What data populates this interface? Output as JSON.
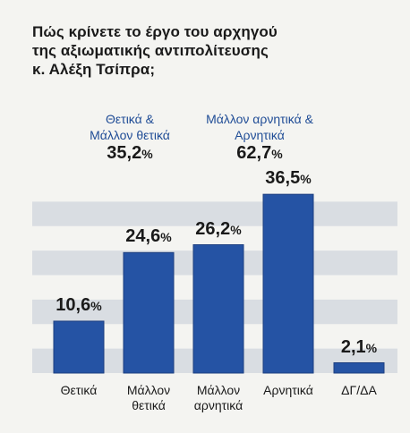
{
  "chart_data": {
    "type": "bar",
    "title_lines": [
      "Πώς κρίνετε το έργο του αρχηγού",
      "της αξιωματικής αντιπολίτευσης",
      "κ. Αλέξη Τσίπρα;"
    ],
    "categories": [
      [
        "Θετικά"
      ],
      [
        "Μάλλον",
        "θετικά"
      ],
      [
        "Μάλλον",
        "αρνητικά"
      ],
      [
        "Αρνητικά"
      ],
      [
        "ΔΓ/ΔΑ"
      ]
    ],
    "values": [
      10.6,
      24.6,
      26.2,
      36.5,
      2.1
    ],
    "value_labels": [
      "10,6",
      "24,6",
      "26,2",
      "36,5",
      "2,1"
    ],
    "percent_sign": "%",
    "groups": [
      {
        "label_lines": [
          "Θετικά &",
          "Μάλλον θετικά"
        ],
        "value_label": "35,2"
      },
      {
        "label_lines": [
          "Μάλλον αρνητικά &",
          "Αρνητικά"
        ],
        "value_label": "62,7"
      }
    ],
    "ylim": [
      0,
      40
    ],
    "grid": "horizontal bands",
    "colors": {
      "bar": "#2553a4",
      "bar_edge": "#1d3f80",
      "band": "#d9dde2",
      "group_label": "#1f4c96"
    }
  }
}
